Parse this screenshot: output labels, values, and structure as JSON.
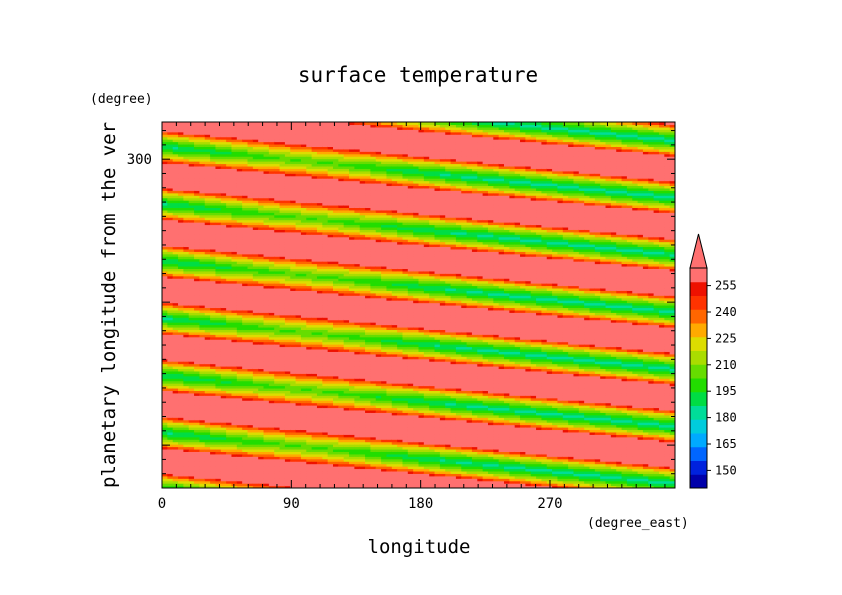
{
  "chart_data": {
    "type": "heatmap",
    "title": "surface temperature",
    "xlabel": "longitude",
    "ylabel": "planetary longitude from the ver",
    "x_units": "(degree_east)",
    "y_units": "(degree)",
    "xlim": [
      0,
      357
    ],
    "ylim": [
      70,
      326
    ],
    "x_ticks": [
      0,
      90,
      180,
      270
    ],
    "y_ticks": [
      300
    ],
    "colorbar": {
      "ticks": [
        150,
        165,
        180,
        195,
        210,
        225,
        240,
        255
      ],
      "range": [
        140,
        265
      ],
      "extend": "max",
      "colors": [
        "#0000aa",
        "#0022dd",
        "#0066ff",
        "#00aaff",
        "#00ccdd",
        "#00dd99",
        "#00dd44",
        "#22dd00",
        "#66dd00",
        "#aadd00",
        "#dddd00",
        "#ffaa00",
        "#ff6600",
        "#ff3300",
        "#ee1100",
        "#ff7070"
      ],
      "extend_color": "#ff7070"
    },
    "pattern": {
      "description_free": true,
      "band_period_y": 40,
      "slope_y_per_x": -0.1,
      "phase_y_at_x0": 320,
      "day_temp": 262,
      "night_min_temp": 183,
      "cold_spot_x": 100
    }
  }
}
